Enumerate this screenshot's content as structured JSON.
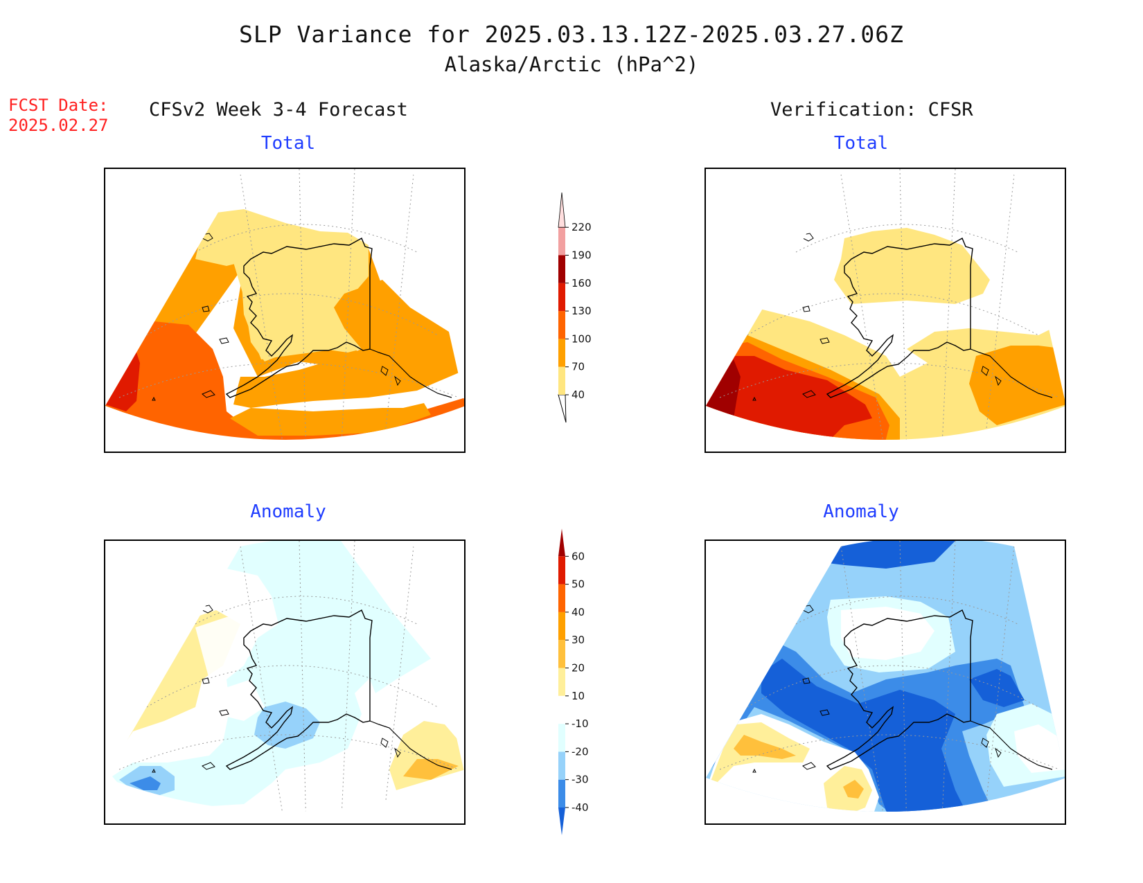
{
  "title": "SLP Variance for 2025.03.13.12Z-2025.03.27.06Z",
  "subtitle": "Alaska/Arctic (hPa^2)",
  "fcst_label": "FCST Date:",
  "fcst_date": "2025.02.27",
  "left_column_title": "CFSv2 Week 3-4 Forecast",
  "right_column_title": "Verification: CFSR",
  "panels": {
    "forecast_total": {
      "title": "Total"
    },
    "verification_total": {
      "title": "Total"
    },
    "forecast_anomaly": {
      "title": "Anomaly"
    },
    "verification_anomaly": {
      "title": "Anomaly"
    }
  },
  "chart_data": [
    {
      "type": "heatmap",
      "name": "SLP variance total colorbar",
      "levels": [
        "40",
        "70",
        "100",
        "130",
        "160",
        "190",
        "220"
      ],
      "colors": [
        "#ffe680",
        "#ffa000",
        "#ff6400",
        "#e01a00",
        "#a00000",
        "#f2a0a0",
        "#ffdede"
      ]
    },
    {
      "type": "heatmap",
      "name": "SLP variance anomaly colorbar",
      "levels": [
        "-40",
        "-30",
        "-20",
        "-10",
        "10",
        "20",
        "30",
        "40",
        "50",
        "60"
      ],
      "colors": [
        "#1560d8",
        "#3c8ce8",
        "#96d2fa",
        "#e1ffff",
        "#ffffff",
        "#ffef9a",
        "#ffc03c",
        "#ffa000",
        "#ff6400",
        "#e01a00",
        "#a00000"
      ]
    }
  ]
}
